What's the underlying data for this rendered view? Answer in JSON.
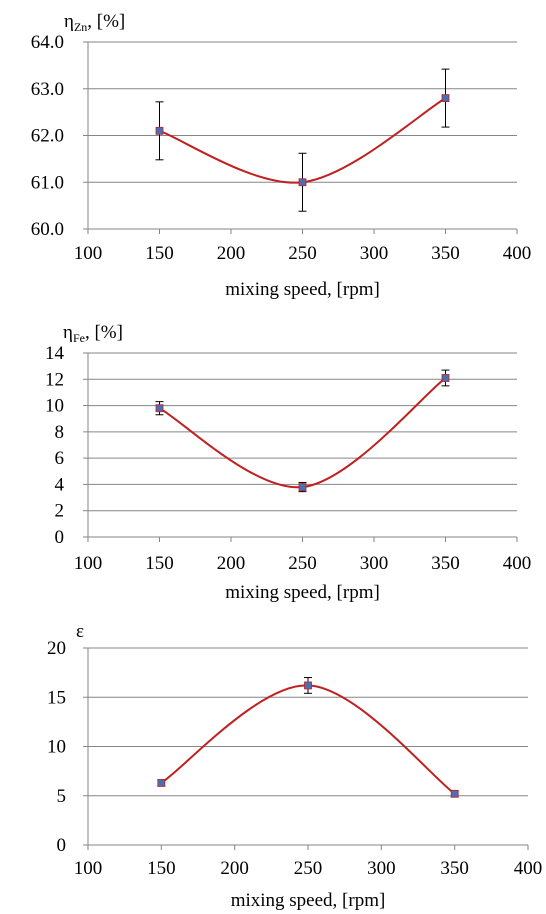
{
  "chart_data": [
    {
      "type": "line",
      "ylabel_symbol": "η",
      "ylabel_sub": "Zn",
      "ylabel_unit": ", [%]",
      "xlabel": "mixing  speed, [rpm]",
      "xlim": [
        100,
        400
      ],
      "ylim": [
        60,
        64
      ],
      "xticks": [
        100,
        150,
        200,
        250,
        300,
        350,
        400
      ],
      "yticks": [
        60,
        61,
        62,
        63,
        64
      ],
      "ytick_labels": [
        "60.0",
        "61.0",
        "62.0",
        "63.0",
        "64.0"
      ],
      "grid": true,
      "smooth": true,
      "colors": {
        "line": "#c0201f",
        "marker": "#4a6fb5",
        "error": "#000000",
        "grid": "#868686"
      },
      "series": [
        {
          "x": [
            150,
            250,
            350
          ],
          "y": [
            62.1,
            61.0,
            62.8
          ],
          "error": [
            0.62,
            0.62,
            0.62
          ]
        }
      ]
    },
    {
      "type": "line",
      "ylabel_symbol": "η",
      "ylabel_sub": "Fe",
      "ylabel_unit": ", [%]",
      "xlabel": "mixing  speed, [rpm]",
      "xlim": [
        100,
        400
      ],
      "ylim": [
        0,
        14
      ],
      "xticks": [
        100,
        150,
        200,
        250,
        300,
        350,
        400
      ],
      "yticks": [
        0,
        2,
        4,
        6,
        8,
        10,
        12,
        14
      ],
      "ytick_labels": [
        "0",
        "2",
        "4",
        "6",
        "8",
        "10",
        "12",
        "14"
      ],
      "grid": true,
      "smooth": true,
      "colors": {
        "line": "#c0201f",
        "marker": "#4a6fb5",
        "error": "#000000",
        "grid": "#868686"
      },
      "series": [
        {
          "x": [
            150,
            250,
            350
          ],
          "y": [
            9.8,
            3.8,
            12.1
          ],
          "error": [
            0.5,
            0.35,
            0.6
          ]
        }
      ]
    },
    {
      "type": "line",
      "ylabel_symbol": "ε",
      "ylabel_sub": "",
      "ylabel_unit": "",
      "xlabel": "mixing  speed, [rpm]",
      "xlim": [
        100,
        400
      ],
      "ylim": [
        0,
        20
      ],
      "xticks": [
        100,
        150,
        200,
        250,
        300,
        350,
        400
      ],
      "yticks": [
        0,
        5,
        10,
        15,
        20
      ],
      "ytick_labels": [
        "0",
        "5",
        "10",
        "15",
        "20"
      ],
      "grid": true,
      "smooth": true,
      "colors": {
        "line": "#c0201f",
        "marker": "#4a6fb5",
        "error": "#000000",
        "grid": "#868686"
      },
      "series": [
        {
          "x": [
            150,
            250,
            350
          ],
          "y": [
            6.3,
            16.2,
            5.2
          ],
          "error": [
            0.3,
            0.8,
            0.3
          ]
        }
      ]
    }
  ]
}
